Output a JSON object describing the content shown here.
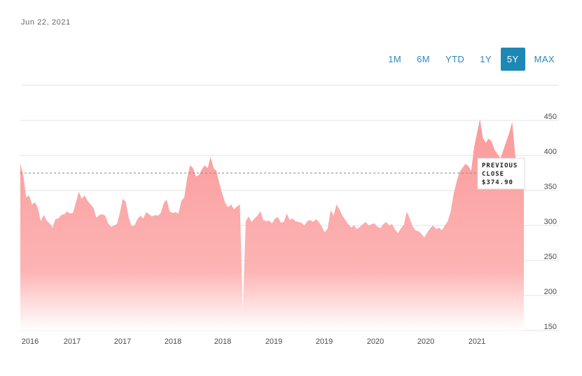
{
  "header": {
    "date": "Jun 22, 2021"
  },
  "ranges": [
    {
      "label": "1M",
      "active": false
    },
    {
      "label": "6M",
      "active": false
    },
    {
      "label": "YTD",
      "active": false
    },
    {
      "label": "1Y",
      "active": false
    },
    {
      "label": "5Y",
      "active": true
    },
    {
      "label": "MAX",
      "active": false
    }
  ],
  "colors": {
    "area_top": "#f99a9a",
    "area_bottom": "#ffffff",
    "accent": "#1e88b5",
    "ref_line": "#888888"
  },
  "tooltip": {
    "line1": "PREVIOUS",
    "line2": "CLOSE",
    "line3": "$374.90"
  },
  "chart_data": {
    "type": "area",
    "previous_close": 374.9,
    "ylim": [
      150,
      450
    ],
    "yticks": [
      150,
      200,
      250,
      300,
      350,
      400,
      450
    ],
    "ytick_labels": [
      "150",
      "200",
      "250",
      "300",
      "350",
      "400",
      "450"
    ],
    "xtick_labels": [
      "2016",
      "2017",
      "2017",
      "2018",
      "2018",
      "2019",
      "2019",
      "2020",
      "2020",
      "2021"
    ],
    "grid": true,
    "series": [
      {
        "values": [
          388,
          372,
          340,
          343,
          330,
          333,
          325,
          306,
          315,
          307,
          303,
          297,
          309,
          310,
          315,
          316,
          320,
          317,
          318,
          333,
          348,
          338,
          343,
          335,
          330,
          325,
          311,
          315,
          316,
          314,
          303,
          298,
          300,
          302,
          318,
          338,
          334,
          312,
          299,
          300,
          309,
          314,
          310,
          319,
          316,
          313,
          315,
          314,
          318,
          332,
          337,
          320,
          318,
          319,
          317,
          335,
          340,
          368,
          386,
          382,
          370,
          372,
          380,
          386,
          382,
          398,
          382,
          378,
          360,
          345,
          332,
          326,
          330,
          323,
          327,
          330,
          178,
          306,
          313,
          305,
          310,
          314,
          320,
          308,
          306,
          307,
          303,
          310,
          312,
          304,
          305,
          317,
          308,
          310,
          306,
          305,
          304,
          300,
          306,
          308,
          305,
          309,
          305,
          298,
          290,
          296,
          322,
          314,
          330,
          323,
          314,
          308,
          302,
          297,
          300,
          295,
          298,
          302,
          305,
          300,
          302,
          303,
          298,
          296,
          302,
          305,
          300,
          302,
          294,
          289,
          296,
          301,
          320,
          310,
          299,
          293,
          292,
          288,
          283,
          290,
          296,
          300,
          295,
          297,
          293,
          300,
          306,
          320,
          345,
          362,
          376,
          382,
          388,
          385,
          378,
          412,
          432,
          452,
          425,
          418,
          424,
          420,
          408,
          402,
          396,
          408,
          420,
          432,
          448,
          402,
          378,
          380,
          376
        ]
      }
    ]
  }
}
